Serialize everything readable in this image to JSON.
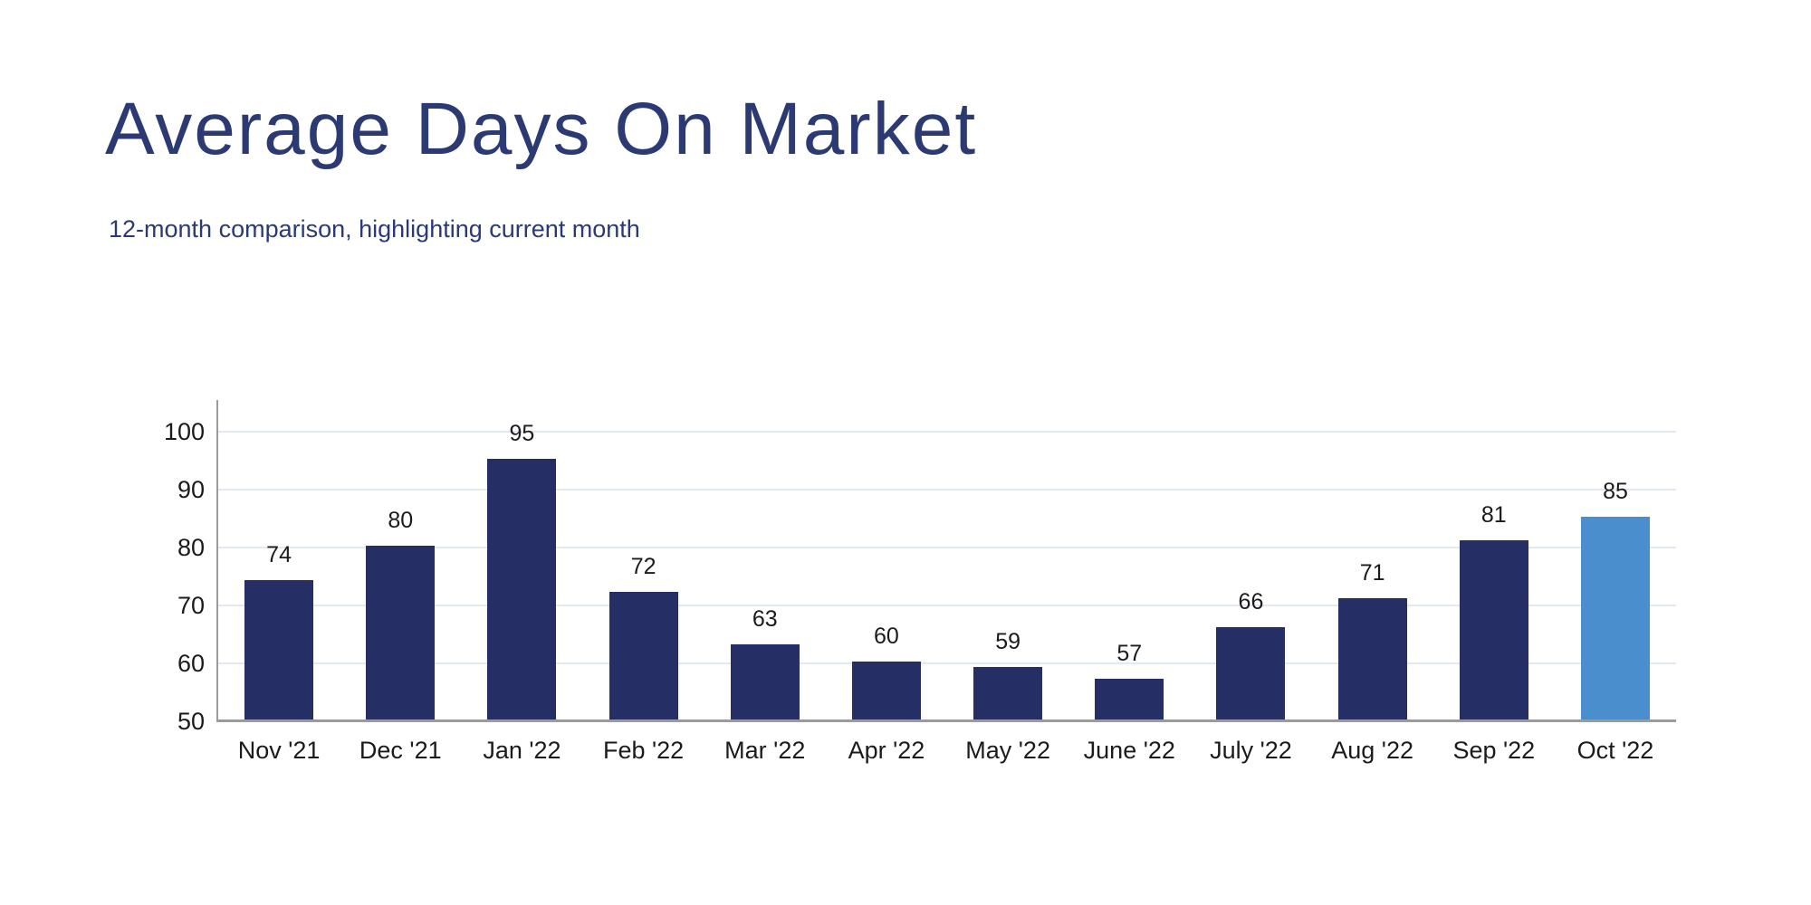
{
  "chart": {
    "title": "Average Days On Market",
    "subtitle": "12-month comparison, highlighting current month"
  },
  "chart_data": {
    "type": "bar",
    "title": "Average Days On Market",
    "subtitle": "12-month comparison, highlighting current month",
    "categories": [
      "Nov '21",
      "Dec '21",
      "Jan '22",
      "Feb '22",
      "Mar '22",
      "Apr '22",
      "May '22",
      "June '22",
      "July '22",
      "Aug '22",
      "Sep '22",
      "Oct '22"
    ],
    "values": [
      74,
      80,
      95,
      72,
      63,
      60,
      59,
      57,
      66,
      71,
      81,
      85
    ],
    "highlight_index": 11,
    "highlighted_category": "Oct '22",
    "xlabel": "",
    "ylabel": "",
    "ylim": [
      50,
      105
    ],
    "yticks": [
      50,
      60,
      70,
      80,
      90,
      100
    ],
    "grid": true,
    "legend": false,
    "data_labels": true,
    "colors": {
      "bar": "#252f66",
      "highlight": "#4a8ecd",
      "title": "#2c3a74",
      "grid": "#e2e9f2",
      "axis": "#9b9b9b",
      "label": "#1b1b1b"
    }
  }
}
